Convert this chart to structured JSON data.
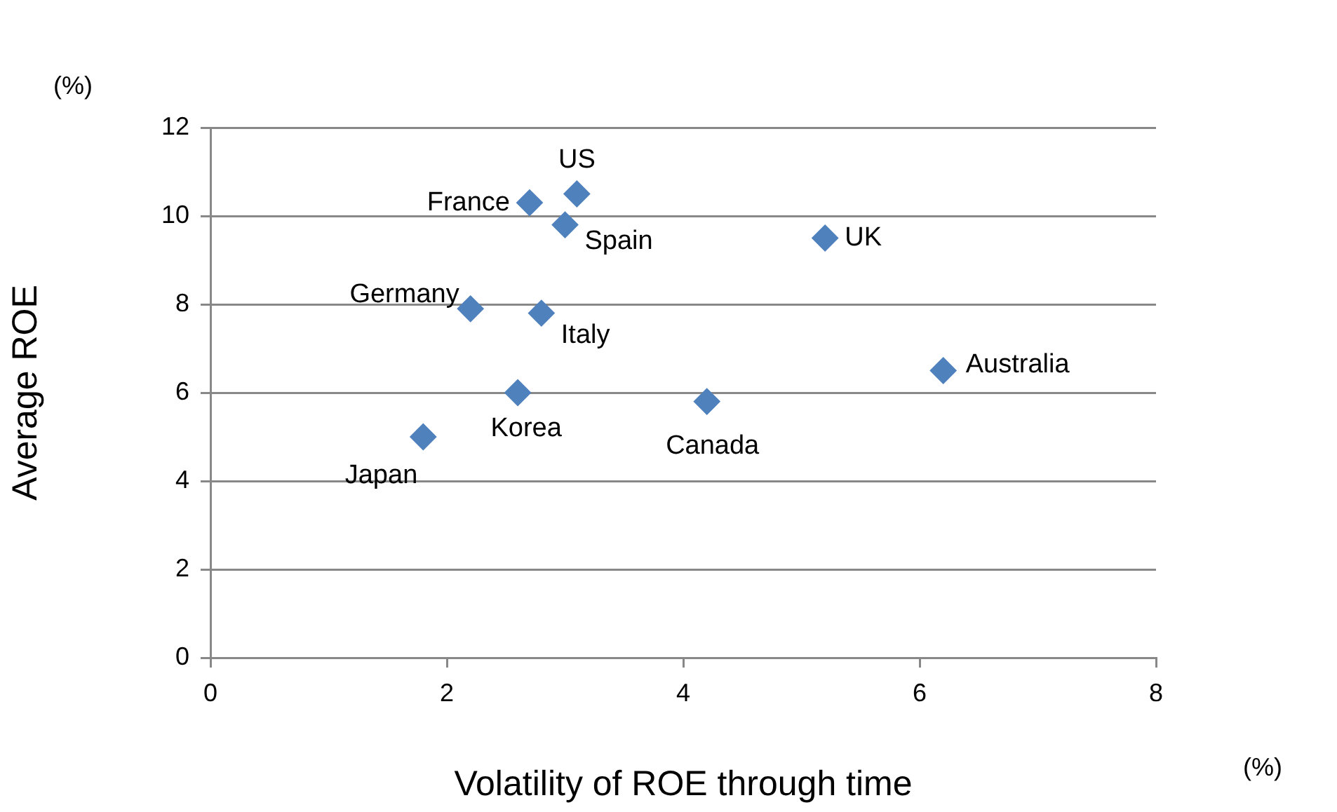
{
  "chart_data": {
    "type": "scatter",
    "xlabel": "Volatility of ROE through time",
    "ylabel": "Average ROE",
    "annotations": [
      "(%)",
      "(%)",
      {
        "text": "France",
        "x": 2.7,
        "y": 10.3
      },
      {
        "text": "US",
        "x": 3.1,
        "y": 10.5
      },
      {
        "text": "Spain",
        "x": 3.0,
        "y": 9.8
      },
      {
        "text": "UK",
        "x": 5.2,
        "y": 9.5
      },
      {
        "text": "Germany",
        "x": 2.2,
        "y": 7.9
      },
      {
        "text": "Italy",
        "x": 2.8,
        "y": 7.8
      },
      {
        "text": "Australia",
        "x": 6.2,
        "y": 6.5
      },
      {
        "text": "Korea",
        "x": 2.6,
        "y": 6.0
      },
      {
        "text": "Canada",
        "x": 4.2,
        "y": 5.8
      },
      {
        "text": "Japan",
        "x": 1.8,
        "y": 5.0
      }
    ],
    "series": [
      {
        "color": "#4f81bd",
        "x": [
          2.7,
          3.1,
          3.0,
          5.2,
          2.2,
          2.8,
          6.2,
          2.6,
          4.2,
          1.8
        ],
        "values": [
          10.3,
          10.5,
          9.8,
          9.5,
          7.9,
          7.8,
          6.5,
          6.0,
          5.8,
          5.0
        ]
      }
    ],
    "xlim": [
      0,
      8
    ],
    "xticks": [
      0,
      2,
      4,
      6,
      8
    ],
    "ylim": [
      0,
      12
    ],
    "yticks": [
      0,
      2,
      4,
      6,
      8,
      10,
      12
    ],
    "grid": "y",
    "marker": "diamond",
    "legend": false
  }
}
